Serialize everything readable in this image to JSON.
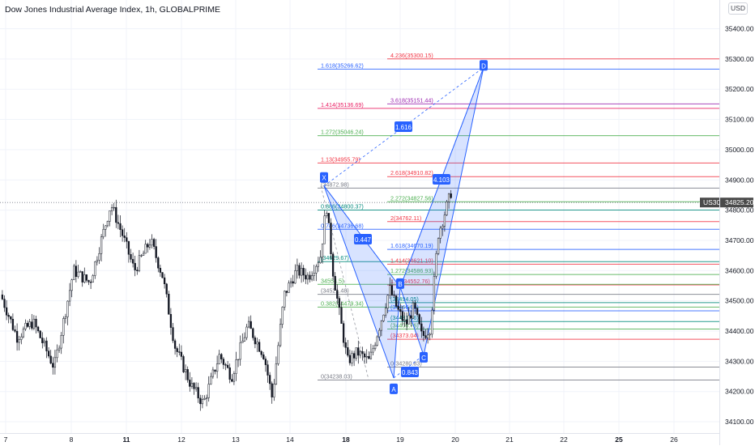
{
  "header": {
    "title": "Dow Jones Industrial Average Index, 1h, GLOBALPRIME",
    "currency": "USD"
  },
  "chart_data": {
    "type": "candlestick",
    "symbol": "US30",
    "last_price": "34825.20",
    "y_ticks": [
      "35400.00",
      "35300.00",
      "35200.00",
      "35100.00",
      "35000.00",
      "34900.00",
      "34800.00",
      "34700.00",
      "34600.00",
      "34500.00",
      "34400.00",
      "34300.00",
      "34200.00",
      "34100.00"
    ],
    "x_ticks": [
      "7",
      "8",
      "11",
      "12",
      "13",
      "14",
      "18",
      "19",
      "20",
      "21",
      "22",
      "25",
      "26"
    ],
    "bold_x_ticks": [
      "11",
      "18",
      "25"
    ],
    "ylim": [
      34060,
      35480
    ],
    "pattern_points": [
      {
        "label": "X",
        "price": 34880
      },
      {
        "label": "A",
        "price": 34245
      },
      {
        "label": "B",
        "price": 34545
      },
      {
        "label": "C",
        "price": 34320
      },
      {
        "label": "D",
        "price": 35272
      }
    ],
    "ratio_labels": [
      "0.447",
      "1.616",
      "0.843",
      "4.103"
    ],
    "fib_levels": [
      {
        "text": "4.236(35300.15)",
        "price": 35300.15,
        "color": "#f23645"
      },
      {
        "text": "1.618(35266.62)",
        "price": 35266.62,
        "color": "#2962ff"
      },
      {
        "text": "3.618(35151.44)",
        "price": 35151.44,
        "color": "#9c27b0"
      },
      {
        "text": "1.414(35136.69)",
        "price": 35136.69,
        "color": "#e91e63"
      },
      {
        "text": "1.272(35046.24)",
        "price": 35046.24,
        "color": "#4caf50"
      },
      {
        "text": "1.13(34955.79)",
        "price": 34955.79,
        "color": "#f23645"
      },
      {
        "text": "2.618(34910.82)",
        "price": 34910.82,
        "color": "#f23645"
      },
      {
        "text": "(34872.98)",
        "price": 34872.98,
        "color": "#787b86"
      },
      {
        "text": "2.272(34827.56)",
        "price": 34827.56,
        "color": "#4caf50"
      },
      {
        "text": "0.886(34800.37)",
        "price": 34800.37,
        "color": "#00897b"
      },
      {
        "text": "2(34762.11)",
        "price": 34762.11,
        "color": "#f23645"
      },
      {
        "text": "0.786(34736.68)",
        "price": 34736.68,
        "color": "#2962ff"
      },
      {
        "text": "1.618(34670.19)",
        "price": 34670.19,
        "color": "#2962ff"
      },
      {
        "text": "(34629.67)",
        "price": 34629.67,
        "color": "#00897b"
      },
      {
        "text": "1.414(34621.10)",
        "price": 34621.1,
        "color": "#f23645"
      },
      {
        "text": "1.272(34586.93)",
        "price": 34586.93,
        "color": "#4caf50"
      },
      {
        "text": "1.13(34552.76)",
        "price": 34552.76,
        "color": "#f23645"
      },
      {
        "text": "34554.5)",
        "price": 34554.5,
        "color": "#4caf50"
      },
      {
        "text": "(34521.48)",
        "price": 34521.48,
        "color": "#787b86"
      },
      {
        "text": "(34494.05)",
        "price": 34494.05,
        "color": "#00897b"
      },
      {
        "text": "0.382(34479.34)",
        "price": 34479.34,
        "color": "#4caf50"
      },
      {
        "text": "(34466.98)",
        "price": 34466.98,
        "color": "#2962ff"
      },
      {
        "text": "(34431.56)",
        "price": 34431.56,
        "color": "#00897b"
      },
      {
        "text": "(34406.76)",
        "price": 34406.76,
        "color": "#4caf50"
      },
      {
        "text": "(34373.04)",
        "price": 34373.04,
        "color": "#f23645"
      },
      {
        "text": "0(34280.83)",
        "price": 34280.83,
        "color": "#787b86"
      },
      {
        "text": "0(34238.03)",
        "price": 34238.03,
        "color": "#787b86"
      }
    ]
  }
}
